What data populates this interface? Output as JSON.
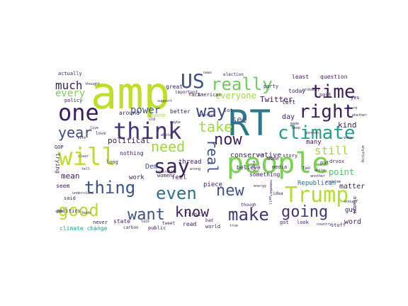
{
  "palette": {
    "dark_purple": "#3b1f5a",
    "purple": "#46337e",
    "indigo": "#365c8d",
    "blue": "#2c7fb8",
    "teal": "#1fa187",
    "green": "#4ac16d",
    "lime": "#a0da39",
    "yellow": "#d0e11c"
  },
  "words": [
    {
      "text": "amp",
      "color": "#bddf26"
    },
    {
      "text": "RT",
      "color": "#2a788e"
    },
    {
      "text": "people",
      "color": "#7ad151"
    },
    {
      "text": "one",
      "color": "#3b1f5a"
    },
    {
      "text": "think",
      "color": "#46337e"
    },
    {
      "text": "will",
      "color": "#bddf26"
    },
    {
      "text": "Trump",
      "color": "#b5de2b"
    },
    {
      "text": "US",
      "color": "#3b528b"
    },
    {
      "text": "really",
      "color": "#6ccd5a"
    },
    {
      "text": "time",
      "color": "#3b1f5a"
    },
    {
      "text": "right",
      "color": "#3b1f5a"
    },
    {
      "text": "way",
      "color": "#3e4a89"
    },
    {
      "text": "climate",
      "color": "#1fa187"
    },
    {
      "text": "say",
      "color": "#3b1f5a"
    },
    {
      "text": "thing",
      "color": "#3b528b"
    },
    {
      "text": "even",
      "color": "#2c728e"
    },
    {
      "text": "make",
      "color": "#46337e"
    },
    {
      "text": "going",
      "color": "#46337e"
    },
    {
      "text": "good",
      "color": "#b5de2b"
    },
    {
      "text": "want",
      "color": "#3b528b"
    },
    {
      "text": "know",
      "color": "#3b1f5a"
    },
    {
      "text": "now",
      "color": "#3b1f5a"
    },
    {
      "text": "new",
      "color": "#3b528b"
    },
    {
      "text": "year",
      "color": "#3e4a89"
    },
    {
      "text": "take",
      "color": "#a0da39"
    },
    {
      "text": "need",
      "color": "#a0da39"
    },
    {
      "text": "real",
      "color": "#3b528b"
    },
    {
      "text": "much",
      "color": "#3b1f5a"
    },
    {
      "text": "power",
      "color": "#3b528b"
    },
    {
      "text": "every",
      "color": "#7ad151"
    },
    {
      "text": "still",
      "color": "#a0da39"
    },
    {
      "text": "see",
      "color": "#3b528b"
    },
    {
      "text": "point",
      "color": "#4ac16d"
    },
    {
      "text": "political",
      "color": "#3b1f5a"
    },
    {
      "text": "everyone",
      "color": "#a0da39"
    },
    {
      "text": "Twitter",
      "color": "#3b1f5a"
    },
    {
      "text": "conservative",
      "color": "#3b1f5a"
    },
    {
      "text": "thread",
      "color": "#3b1f5a"
    },
    {
      "text": "mean",
      "color": "#3b1f5a"
    },
    {
      "text": "Dem",
      "color": "#3b528b"
    },
    {
      "text": "work",
      "color": "#3b1f5a"
    },
    {
      "text": "day",
      "color": "#3b1f5a"
    },
    {
      "text": "many",
      "color": "#3b1f5a"
    },
    {
      "text": "kind",
      "color": "#3b1f5a"
    },
    {
      "text": "matter",
      "color": "#3b1f5a"
    },
    {
      "text": "Republican",
      "color": "#2c728e"
    },
    {
      "text": "piece",
      "color": "#3b1f5a"
    },
    {
      "text": "feel",
      "color": "#3b1f5a"
    },
    {
      "text": "first",
      "color": "#3b1f5a"
    },
    {
      "text": "state",
      "color": "#3b1f5a"
    },
    {
      "text": "climate change",
      "color": "#1fa187"
    },
    {
      "text": "word",
      "color": "#3b1f5a"
    },
    {
      "text": "guy",
      "color": "#3b1f5a"
    },
    {
      "text": "read",
      "color": "#3b1f5a"
    },
    {
      "text": "world",
      "color": "#3b1f5a"
    },
    {
      "text": "nothing",
      "color": "#3b1f5a"
    },
    {
      "text": "women",
      "color": "#3b1f5a"
    },
    {
      "text": "great",
      "color": "#3b1f5a"
    },
    {
      "text": "better",
      "color": "#3b1f5a"
    },
    {
      "text": "left",
      "color": "#3b1f5a"
    },
    {
      "text": "today",
      "color": "#3b1f5a"
    },
    {
      "text": "believe",
      "color": "#3b1f5a"
    },
    {
      "text": "something",
      "color": "#3b1f5a"
    },
    {
      "text": "story",
      "color": "#3b1f5a"
    },
    {
      "text": "question",
      "color": "#3b1f5a"
    },
    {
      "text": "party",
      "color": "#3b1f5a"
    },
    {
      "text": "least",
      "color": "#3b1f5a"
    },
    {
      "text": "post",
      "color": "#3b1f5a"
    },
    {
      "text": "around",
      "color": "#3b1f5a"
    },
    {
      "text": "anyone",
      "color": "#a0da39"
    },
    {
      "text": "fact",
      "color": "#3b1f5a"
    },
    {
      "text": "American",
      "color": "#3b1f5a"
    },
    {
      "text": "lot",
      "color": "#3b1f5a"
    },
    {
      "text": "yes",
      "color": "#3b1f5a"
    },
    {
      "text": "seem",
      "color": "#3b1f5a"
    },
    {
      "text": "said",
      "color": "#3b1f5a"
    },
    {
      "text": "politics",
      "color": "#3b1f5a"
    },
    {
      "text": "never",
      "color": "#3b1f5a"
    },
    {
      "text": "long",
      "color": "#3b1f5a"
    },
    {
      "text": "trying",
      "color": "#3b1f5a"
    },
    {
      "text": "GOP",
      "color": "#3b1f5a"
    },
    {
      "text": "policy",
      "color": "#3b1f5a"
    },
    {
      "text": "actually",
      "color": "#3b1f5a"
    },
    {
      "text": "election",
      "color": "#3b1f5a"
    },
    {
      "text": "important",
      "color": "#3b1f5a"
    },
    {
      "text": "though",
      "color": "#3b1f5a"
    },
    {
      "text": "media",
      "color": "#3b1f5a"
    },
    {
      "text": "done",
      "color": "#3b1f5a"
    },
    {
      "text": "put",
      "color": "#3b1f5a"
    },
    {
      "text": "drvox",
      "color": "#3b1f5a"
    },
    {
      "text": "got",
      "color": "#3b1f5a"
    },
    {
      "text": "look",
      "color": "#3b1f5a"
    },
    {
      "text": "stuff",
      "color": "#3b1f5a"
    },
    {
      "text": "always",
      "color": "#3b1f5a"
    },
    {
      "text": "public",
      "color": "#3b1f5a"
    },
    {
      "text": "tweet",
      "color": "#3b1f5a"
    },
    {
      "text": "carbon",
      "color": "#3b1f5a"
    },
    {
      "text": "love",
      "color": "#3b1f5a"
    },
    {
      "text": "bad",
      "color": "#3b1f5a"
    },
    {
      "text": "true",
      "color": "#3b1f5a"
    },
    {
      "text": "live",
      "color": "#3b1f5a"
    },
    {
      "text": "talk",
      "color": "#3b1f5a"
    },
    {
      "text": "old",
      "color": "#3b1f5a"
    },
    {
      "text": "pretty",
      "color": "#3b1f5a"
    },
    {
      "text": "clear",
      "color": "#3b1f5a"
    },
    {
      "text": "hard",
      "color": "#3b1f5a"
    },
    {
      "text": "made",
      "color": "#3b1f5a"
    },
    {
      "text": "keep",
      "color": "#3b1f5a"
    },
    {
      "text": "enough",
      "color": "#3b1f5a"
    },
    {
      "text": "another",
      "color": "#3b1f5a"
    },
    {
      "text": "white",
      "color": "#3b1f5a"
    },
    {
      "text": "problem",
      "color": "#3b1f5a"
    },
    {
      "text": "vote",
      "color": "#3b1f5a"
    },
    {
      "text": "two",
      "color": "#3b1f5a"
    },
    {
      "text": "idea",
      "color": "#3b1f5a"
    },
    {
      "text": "side",
      "color": "#3b1f5a"
    },
    {
      "text": "literally",
      "color": "#3b1f5a"
    },
    {
      "text": "wrong",
      "color": "#3b1f5a"
    },
    {
      "text": "remember",
      "color": "#3b1f5a"
    },
    {
      "text": "might",
      "color": "#3b1f5a"
    },
    {
      "text": "use",
      "color": "#3b1f5a"
    },
    {
      "text": "tell",
      "color": "#3b1f5a"
    },
    {
      "text": "life",
      "color": "#3b1f5a"
    },
    {
      "text": "whole",
      "color": "#3b1f5a"
    },
    {
      "text": "anything",
      "color": "#3b1f5a"
    },
    {
      "text": "understand",
      "color": "#3b1f5a"
    },
    {
      "text": "country",
      "color": "#3b1f5a"
    },
    {
      "text": "well",
      "color": "#3b1f5a"
    },
    {
      "text": "support",
      "color": "#3b1f5a"
    },
    {
      "text": "probably",
      "color": "#3b1f5a"
    },
    {
      "text": "thought",
      "color": "#3b1f5a"
    },
    {
      "text": "person",
      "color": "#3b1f5a"
    },
    {
      "text": "whether",
      "color": "#3b1f5a"
    },
    {
      "text": "energy",
      "color": "#3b1f5a"
    },
    {
      "text": "book",
      "color": "#3b1f5a"
    },
    {
      "text": "news",
      "color": "#3b1f5a"
    },
    {
      "text": "maybe",
      "color": "#3b1f5a"
    }
  ]
}
